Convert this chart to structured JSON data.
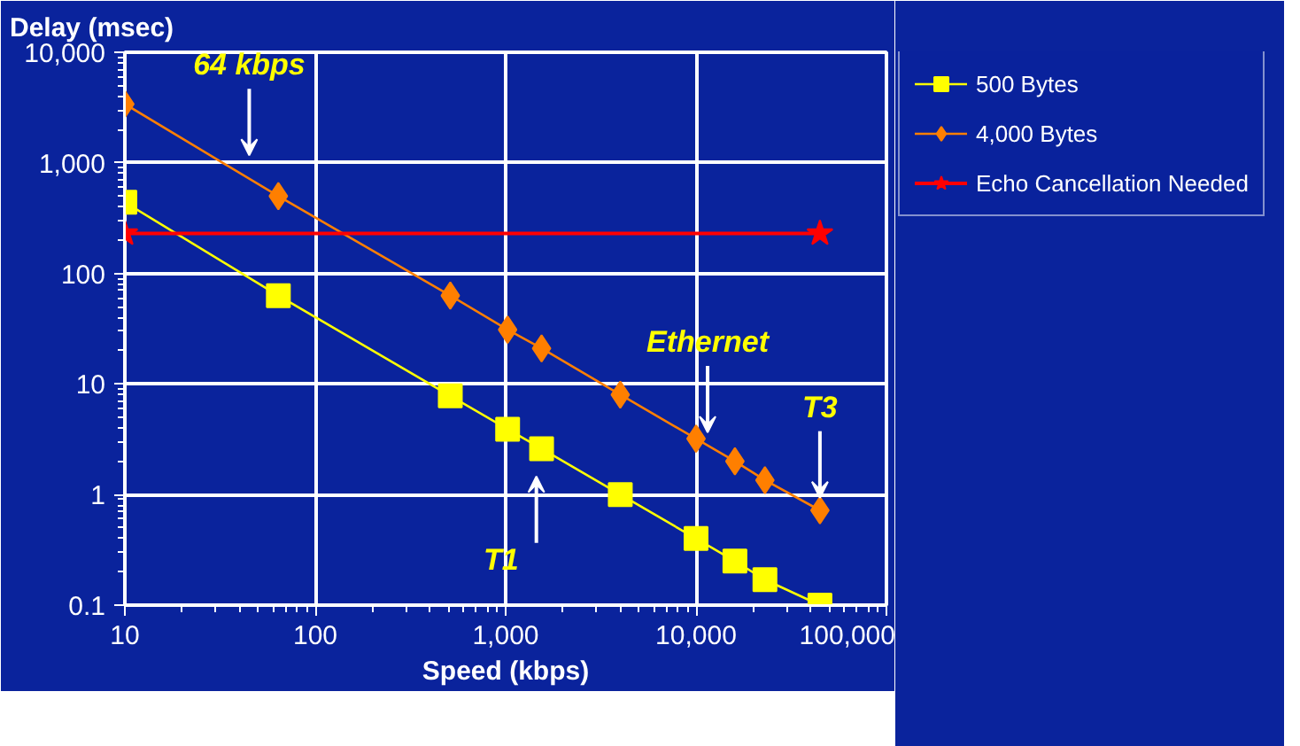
{
  "chart_data": {
    "type": "line",
    "ylabel": "Delay (msec)",
    "xlabel": "Speed (kbps)",
    "log": "xy",
    "grid": true,
    "legend": "right",
    "x": [
      10,
      64,
      512,
      1024,
      1544,
      4000,
      10000,
      16000,
      23000,
      44736
    ],
    "xlim": [
      10,
      100000
    ],
    "ylim": [
      0.1,
      10000
    ],
    "xticks": [
      10,
      100,
      {
        "value": 1000,
        "label": "1,000"
      },
      {
        "value": 10000,
        "label": "10,000"
      },
      {
        "value": 100000,
        "label": "100,000"
      }
    ],
    "yticks": [
      0.1,
      1,
      10,
      100,
      {
        "value": 1000,
        "label": "1,000"
      },
      {
        "value": 10000,
        "label": "10,000"
      }
    ],
    "series": [
      {
        "name": "500 Bytes",
        "color": "#ffff00",
        "marker": "square",
        "values": [
          440,
          63,
          7.8,
          3.9,
          2.6,
          1,
          0.4,
          0.25,
          0.17,
          0.1
        ]
      },
      {
        "name": "4,000 Bytes",
        "color": "#ff7f00",
        "marker": "diamond",
        "values": [
          3400,
          500,
          63,
          31,
          21,
          8,
          3.2,
          2,
          1.35,
          0.72
        ]
      },
      {
        "name": "Echo Cancellation Needed",
        "color": "#ff0000",
        "marker": "star",
        "x": [
          10,
          44736
        ],
        "values": [
          230,
          230
        ]
      }
    ],
    "annotations": [
      {
        "text": "64 kbps",
        "x": 45,
        "y": 900
      },
      {
        "text": "Ethernet",
        "x": 11500,
        "y": 2.8
      },
      {
        "text": "T1",
        "x": 1450,
        "y": 1.9
      },
      {
        "text": "T3",
        "x": 44736,
        "y": 0.72
      }
    ]
  }
}
